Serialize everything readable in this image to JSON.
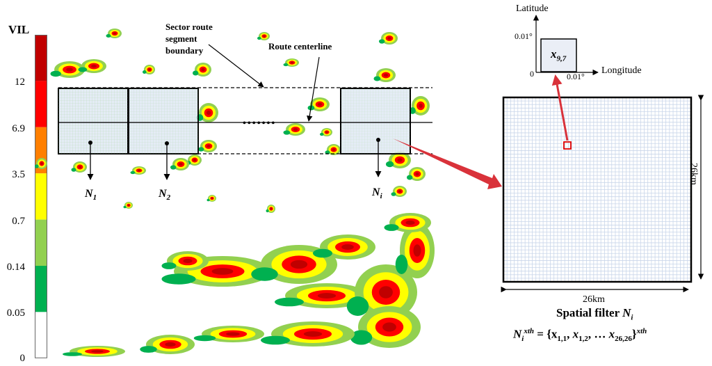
{
  "colorbar": {
    "title": "VIL",
    "ticks": [
      "12",
      "6.9",
      "3.5",
      "0.7",
      "0.14",
      "0.05",
      "0"
    ],
    "colors": [
      "#c00000",
      "#ff0000",
      "#ff7f00",
      "#ffff00",
      "#92d050",
      "#00b050",
      "#ffffff"
    ]
  },
  "annotations": {
    "sector_boundary": [
      "Sector route",
      "segment",
      "boundary"
    ],
    "route_centerline": "Route centerline",
    "dots": "•••••••"
  },
  "filters": [
    {
      "symbol": "N",
      "subscript": "1"
    },
    {
      "symbol": "N",
      "subscript": "2"
    },
    {
      "symbol": "N",
      "subscript": "i"
    }
  ],
  "cell_axes": {
    "y_label": "Latitude",
    "x_label": "Longitude",
    "y_step": "0.01°",
    "x_step": "0.01°",
    "origin": "0",
    "cell_symbol": "x",
    "cell_subscript": "9,7"
  },
  "spatial_filter": {
    "width_label": "26km",
    "height_label": "26km",
    "title": "Spatial filter",
    "title_symbol": "N",
    "title_subscript": "i",
    "grid_n": 26,
    "formula_lhs": "N",
    "formula_lhs_sub": "i",
    "formula_lhs_sup": "xth",
    "formula_rhs": "= {x",
    "formula_terms": [
      "1,1",
      "1,2",
      "26,26"
    ],
    "formula_sup": "xth"
  },
  "palette": {
    "dark_red": "#c00000",
    "red": "#ff0000",
    "yellow": "#ffff00",
    "light_green": "#92d050",
    "green": "#00b050",
    "filter_fill": "#dbe5f1",
    "arrow": "#d9323a"
  }
}
